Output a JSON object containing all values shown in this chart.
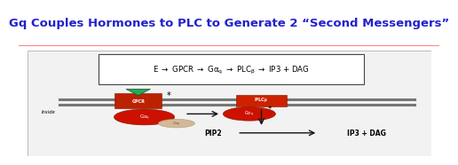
{
  "title": "Gq Couples Hormones to PLC to Generate 2 “Second Messengers”",
  "title_color": "#2222cc",
  "title_fontsize": 9.5,
  "bg_color": "#ffffff",
  "divider_color": "#ff8888",
  "box_bg": "#f0f0f0",
  "membrane_color": "#777777",
  "gpcr_color": "#bb2200",
  "plc_color": "#cc2200",
  "gaq_color": "#cc1100",
  "inside_label": "Inside",
  "pip2_label": "PIP2",
  "ip3dag_label": "IP3 + DAG",
  "arrow_color": "#111111",
  "eq_text": "E → GPCR → Gαq → PLCβ → IP3 + DAG"
}
